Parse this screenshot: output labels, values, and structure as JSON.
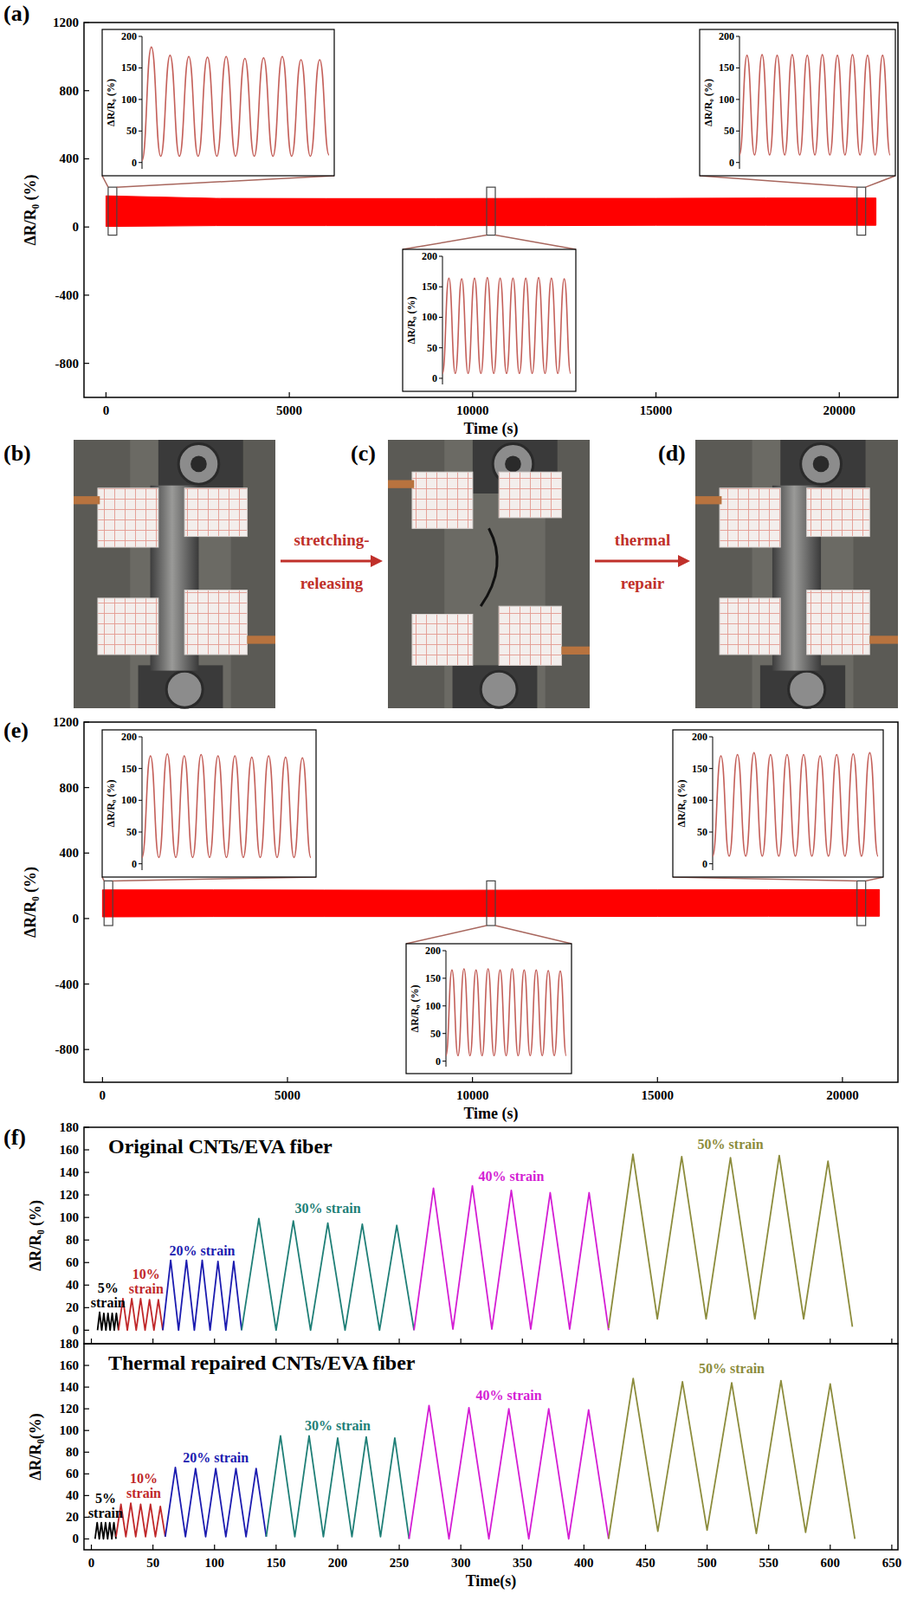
{
  "chart_data": [
    {
      "type": "area",
      "panel": "(a)",
      "x_label": "Time (s)",
      "y_label": "ΔR/R₀ (%)",
      "x": [
        0,
        3000,
        6000,
        9000,
        12000,
        15000,
        18000,
        21000
      ],
      "series": [
        {
          "color": "#ff0000",
          "upper": [
            183,
            168,
            167,
            167,
            168,
            168,
            170,
            170
          ],
          "lower": [
            3,
            8,
            8,
            8,
            8,
            10,
            10,
            10
          ]
        }
      ],
      "xlim": [
        -600,
        21600
      ],
      "ylim": [
        -1000,
        1200
      ],
      "xticks": [
        0,
        5000,
        10000,
        15000,
        20000
      ],
      "yticks": [
        -800,
        -400,
        0,
        400,
        800,
        1200
      ]
    },
    {
      "type": "line",
      "y_label": "ΔR/R₀ (%)",
      "x": [
        0,
        1,
        2,
        3,
        4,
        5,
        6,
        7,
        8,
        9,
        10,
        11,
        12,
        13,
        14,
        15,
        16,
        17,
        18,
        19,
        20
      ],
      "values": [
        3,
        183,
        10,
        170,
        10,
        168,
        10,
        167,
        10,
        168,
        10,
        165,
        10,
        166,
        10,
        168,
        10,
        163,
        10,
        163,
        12
      ],
      "color": "#c4605a",
      "xlim": [
        0,
        20
      ],
      "ylim": [
        -10,
        200
      ],
      "yticks": [
        0,
        50,
        100,
        150,
        200
      ],
      "tick_labels": "y"
    },
    {
      "type": "line",
      "y_label": "ΔR/R₀ (%)",
      "x": [
        0,
        1,
        2,
        3,
        4,
        5,
        6,
        7,
        8,
        9,
        10,
        11,
        12,
        13,
        14,
        15,
        16,
        17,
        18,
        19,
        20
      ],
      "values": [
        8,
        164,
        8,
        163,
        8,
        164,
        8,
        165,
        8,
        164,
        8,
        164,
        8,
        164,
        8,
        165,
        8,
        164,
        8,
        163,
        8
      ],
      "color": "#c4605a",
      "xlim": [
        0,
        20
      ],
      "ylim": [
        -10,
        200
      ],
      "yticks": [
        0,
        50,
        100,
        150,
        200
      ],
      "tick_labels": "y"
    },
    {
      "type": "line",
      "y_label": "ΔR/R₀ (%)",
      "x": [
        0,
        1,
        2,
        3,
        4,
        5,
        6,
        7,
        8,
        9,
        10,
        11,
        12,
        13,
        14,
        15,
        16,
        17,
        18,
        19,
        20
      ],
      "values": [
        12,
        170,
        12,
        171,
        12,
        170,
        12,
        171,
        12,
        170,
        12,
        171,
        12,
        170,
        12,
        171,
        12,
        170,
        12,
        170,
        12
      ],
      "color": "#c4605a",
      "xlim": [
        0,
        20
      ],
      "ylim": [
        -10,
        200
      ],
      "yticks": [
        0,
        50,
        100,
        150,
        200
      ],
      "tick_labels": "y"
    },
    {
      "type": "area",
      "panel": "(e)",
      "x_label": "Time (s)",
      "y_label": "ΔR/R₀ (%)",
      "x": [
        0,
        3000,
        6000,
        9000,
        12000,
        15000,
        18000,
        21000
      ],
      "series": [
        {
          "color": "#ff0000",
          "upper": [
            175,
            175,
            174,
            173,
            174,
            175,
            176,
            177
          ],
          "lower": [
            10,
            12,
            12,
            12,
            12,
            13,
            14,
            14
          ]
        }
      ],
      "xlim": [
        -500,
        21500
      ],
      "ylim": [
        -1000,
        1200
      ],
      "xticks": [
        0,
        5000,
        10000,
        15000,
        20000
      ],
      "yticks": [
        -800,
        -400,
        0,
        400,
        800,
        1200
      ]
    },
    {
      "type": "line",
      "y_label": "ΔR/R₀ (%)",
      "x": [
        0,
        1,
        2,
        3,
        4,
        5,
        6,
        7,
        8,
        9,
        10,
        11,
        12,
        13,
        14,
        15,
        16,
        17,
        18,
        19,
        20
      ],
      "values": [
        10,
        170,
        10,
        173,
        10,
        170,
        10,
        172,
        10,
        170,
        10,
        170,
        10,
        168,
        10,
        170,
        10,
        168,
        10,
        167,
        10
      ],
      "color": "#c4605a",
      "xlim": [
        0,
        20
      ],
      "ylim": [
        -10,
        200
      ],
      "yticks": [
        0,
        50,
        100,
        150,
        200
      ],
      "tick_labels": "y"
    },
    {
      "type": "line",
      "y_label": "ΔR/R₀ (%)",
      "x": [
        0,
        1,
        2,
        3,
        4,
        5,
        6,
        7,
        8,
        9,
        10,
        11,
        12,
        13,
        14,
        15,
        16,
        17,
        18,
        19,
        20
      ],
      "values": [
        10,
        165,
        10,
        167,
        10,
        165,
        10,
        167,
        10,
        165,
        10,
        167,
        10,
        165,
        10,
        165,
        10,
        164,
        10,
        163,
        10
      ],
      "color": "#c4605a",
      "xlim": [
        0,
        20
      ],
      "ylim": [
        -10,
        200
      ],
      "yticks": [
        0,
        50,
        100,
        150,
        200
      ],
      "tick_labels": "y"
    },
    {
      "type": "line",
      "y_label": "ΔR/R₀ (%)",
      "x": [
        0,
        1,
        2,
        3,
        4,
        5,
        6,
        7,
        8,
        9,
        10,
        11,
        12,
        13,
        14,
        15,
        16,
        17,
        18,
        19,
        20
      ],
      "values": [
        12,
        170,
        12,
        172,
        12,
        175,
        12,
        172,
        12,
        172,
        12,
        172,
        12,
        170,
        12,
        172,
        12,
        173,
        12,
        175,
        12
      ],
      "color": "#c4605a",
      "xlim": [
        0,
        20
      ],
      "ylim": [
        -10,
        200
      ],
      "yticks": [
        0,
        50,
        100,
        150,
        200
      ],
      "tick_labels": "y"
    },
    {
      "type": "line",
      "panel": "(f)",
      "title": "Original CNTs/EVA fiber",
      "y_label": "ΔR/R₀ (%)",
      "xlim": [
        -6,
        655
      ],
      "ylim": [
        -12,
        180
      ],
      "xticks": [
        0,
        50,
        100,
        150,
        200,
        250,
        300,
        350,
        400,
        450,
        500,
        550,
        600,
        650
      ],
      "yticks": [
        0,
        20,
        40,
        60,
        80,
        100,
        120,
        140,
        160,
        180
      ],
      "tick_labels": "y",
      "series": [
        {
          "name": "5% strain",
          "color": "#000000",
          "x": [
            5,
            6.7,
            8.4,
            10.1,
            11.8,
            13.5,
            15.2,
            16.9,
            18.6,
            20.3,
            22
          ],
          "values": [
            0,
            16,
            0,
            15,
            0,
            15,
            0,
            15,
            0,
            15,
            0
          ]
        },
        {
          "name": "10% strain",
          "color": "#c0282a",
          "x": [
            22,
            25.6,
            29.2,
            32.8,
            36.4,
            40,
            43.6,
            47.2,
            50.8,
            54.4,
            58
          ],
          "values": [
            0,
            28,
            0,
            28,
            0,
            28,
            0,
            27,
            0,
            27,
            0
          ]
        },
        {
          "name": "20% strain",
          "color": "#1c1cb0",
          "x": [
            58,
            64.4,
            70.8,
            77.2,
            83.6,
            90,
            96.4,
            102.8,
            109.2,
            115.6,
            122
          ],
          "values": [
            0,
            62,
            0,
            62,
            0,
            62,
            0,
            61,
            0,
            61,
            0
          ]
        },
        {
          "name": "30% strain",
          "color": "#1f7f77",
          "x": [
            122,
            136,
            150,
            164,
            178,
            192,
            206,
            220,
            234,
            248,
            262
          ],
          "values": [
            0,
            99,
            0,
            97,
            0,
            95,
            0,
            94,
            0,
            93,
            0
          ]
        },
        {
          "name": "40% strain",
          "color": "#d41ed4",
          "x": [
            262,
            277.8,
            293.6,
            309.4,
            325.2,
            341,
            356.8,
            372.6,
            388.4,
            404.2,
            420
          ],
          "values": [
            0,
            126,
            1,
            128,
            1,
            124,
            1,
            122,
            1,
            122,
            0
          ]
        },
        {
          "name": "50% strain",
          "color": "#8c8c3c",
          "x": [
            420,
            439.8,
            459.6,
            479.4,
            499.2,
            519,
            538.8,
            558.6,
            578.4,
            598.2,
            618
          ],
          "values": [
            2,
            156,
            10,
            154,
            10,
            153,
            10,
            155,
            10,
            150,
            3
          ]
        }
      ]
    },
    {
      "type": "line",
      "title": "Thermal repaired CNTs/EVA fiber",
      "x_label": "Time(s)",
      "y_label": "ΔR/R₀(%)",
      "xlim": [
        -6,
        655
      ],
      "ylim": [
        -10,
        180
      ],
      "xticks": [
        0,
        50,
        100,
        150,
        200,
        250,
        300,
        350,
        400,
        450,
        500,
        550,
        600,
        650
      ],
      "yticks": [
        0,
        20,
        40,
        60,
        80,
        100,
        120,
        140,
        160,
        180
      ],
      "series": [
        {
          "name": "5% strain",
          "color": "#000000",
          "x": [
            3,
            4.7,
            6.4,
            8.1,
            9.8,
            11.5,
            13.2,
            14.9,
            16.6,
            18.3,
            20
          ],
          "values": [
            0,
            15,
            0,
            15,
            0,
            15,
            0,
            15,
            0,
            15,
            0
          ]
        },
        {
          "name": "10% strain",
          "color": "#c0282a",
          "x": [
            20,
            24,
            28,
            32,
            36,
            40,
            44,
            48,
            52,
            56,
            60
          ],
          "values": [
            2,
            32,
            2,
            33,
            2,
            32,
            2,
            32,
            2,
            30,
            2
          ]
        },
        {
          "name": "20% strain",
          "color": "#1c1cb0",
          "x": [
            60,
            68.2,
            76.4,
            84.6,
            92.8,
            101,
            109.2,
            117.4,
            125.6,
            133.8,
            142
          ],
          "values": [
            2,
            66,
            2,
            65,
            2,
            65,
            2,
            65,
            2,
            65,
            2
          ]
        },
        {
          "name": "30% strain",
          "color": "#1f7f77",
          "x": [
            142,
            153.6,
            165.2,
            176.8,
            188.4,
            200,
            211.6,
            223.2,
            234.8,
            246.4,
            258
          ],
          "values": [
            2,
            95,
            2,
            95,
            2,
            93,
            2,
            94,
            2,
            93,
            0
          ]
        },
        {
          "name": "40% strain",
          "color": "#d41ed4",
          "x": [
            258,
            274.2,
            290.4,
            306.6,
            322.8,
            339,
            355.2,
            371.4,
            387.6,
            403.8,
            420
          ],
          "values": [
            0,
            123,
            0,
            121,
            0,
            120,
            0,
            120,
            0,
            119,
            0
          ]
        },
        {
          "name": "50% strain",
          "color": "#8c8c3c",
          "x": [
            420,
            440,
            460,
            480,
            500,
            520,
            540,
            560,
            580,
            600,
            620
          ],
          "values": [
            0,
            148,
            7,
            145,
            8,
            144,
            5,
            146,
            6,
            143,
            0
          ]
        }
      ]
    }
  ],
  "photos": {
    "panels": [
      "(b)",
      "(c)",
      "(d)"
    ],
    "arrows": [
      [
        "stretching-",
        "releasing"
      ],
      [
        "thermal",
        "repair"
      ]
    ]
  }
}
